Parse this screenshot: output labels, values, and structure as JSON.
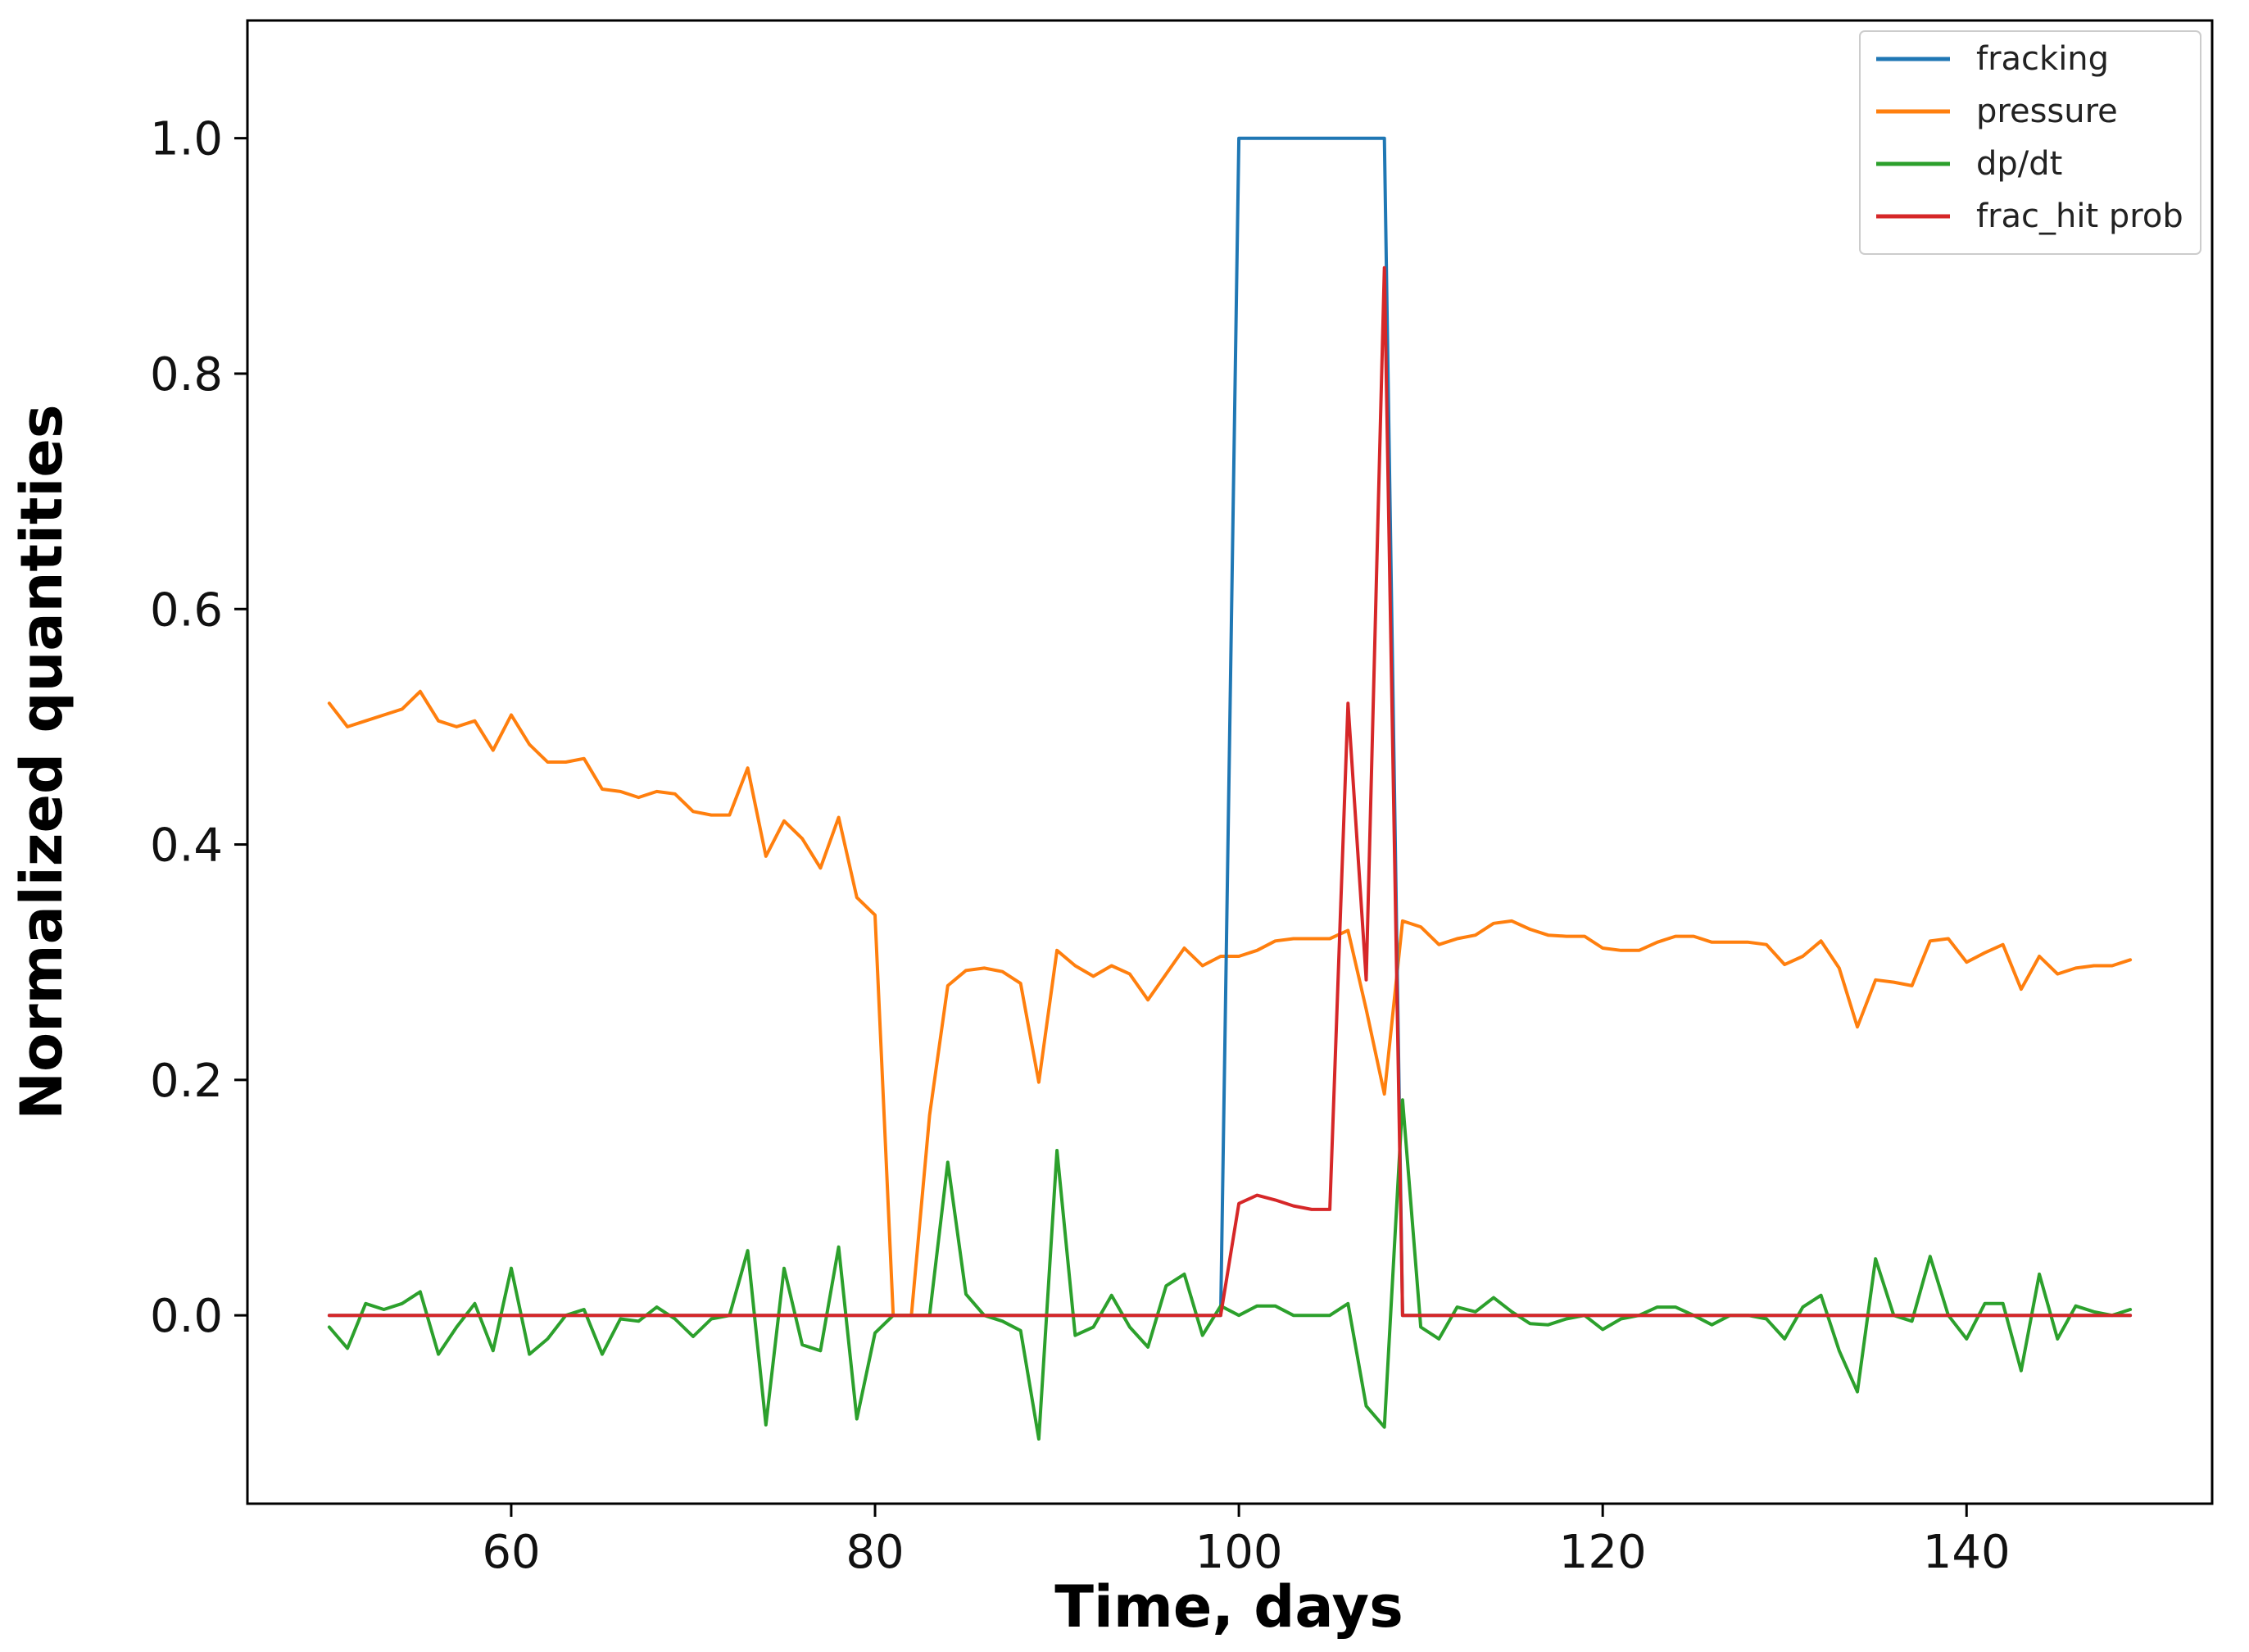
{
  "chart_data": {
    "type": "line",
    "title": "",
    "xlabel": "Time, days",
    "ylabel": "Normalized quantities",
    "xlim": [
      45.5,
      153.5
    ],
    "ylim": [
      -0.16,
      1.1
    ],
    "xticks": [
      60,
      80,
      100,
      120,
      140
    ],
    "xtick_labels": [
      "60",
      "80",
      "100",
      "120",
      "140"
    ],
    "yticks": [
      0.0,
      0.2,
      0.4,
      0.6,
      0.8,
      1.0
    ],
    "ytick_labels": [
      "0.0",
      "0.2",
      "0.4",
      "0.6",
      "0.8",
      "1.0"
    ],
    "grid": false,
    "legend_position": "top-right",
    "series": [
      {
        "name": "fracking",
        "color": "#1f77b4",
        "x": [
          50,
          99,
          100,
          108,
          109,
          149
        ],
        "y": [
          0,
          0,
          1,
          1,
          0,
          0
        ]
      },
      {
        "name": "pressure",
        "color": "#ff7f0e",
        "x": [
          50,
          51,
          52,
          53,
          54,
          55,
          56,
          57,
          58,
          59,
          60,
          61,
          62,
          63,
          64,
          65,
          66,
          67,
          68,
          69,
          70,
          71,
          72,
          73,
          74,
          75,
          76,
          77,
          78,
          79,
          80,
          81,
          82,
          83,
          84,
          85,
          86,
          87,
          88,
          89,
          90,
          91,
          92,
          93,
          94,
          95,
          96,
          97,
          98,
          99,
          100,
          101,
          102,
          103,
          104,
          105,
          106,
          107,
          108,
          109,
          110,
          111,
          112,
          113,
          114,
          115,
          116,
          117,
          118,
          119,
          120,
          121,
          122,
          123,
          124,
          125,
          126,
          127,
          128,
          129,
          130,
          131,
          132,
          133,
          134,
          135,
          136,
          137,
          138,
          139,
          140,
          141,
          142,
          143,
          144,
          145,
          146,
          147,
          148,
          149
        ],
        "y": [
          0.52,
          0.5,
          0.505,
          0.51,
          0.515,
          0.53,
          0.505,
          0.5,
          0.505,
          0.48,
          0.51,
          0.485,
          0.47,
          0.47,
          0.473,
          0.447,
          0.445,
          0.44,
          0.445,
          0.443,
          0.428,
          0.425,
          0.425,
          0.465,
          0.39,
          0.42,
          0.405,
          0.38,
          0.423,
          0.355,
          0.34,
          0.0,
          0.0,
          0.17,
          0.28,
          0.293,
          0.295,
          0.292,
          0.282,
          0.198,
          0.31,
          0.297,
          0.288,
          0.297,
          0.29,
          0.268,
          0.29,
          0.312,
          0.297,
          0.305,
          0.305,
          0.31,
          0.318,
          0.32,
          0.32,
          0.32,
          0.327,
          0.26,
          0.188,
          0.335,
          0.33,
          0.315,
          0.32,
          0.323,
          0.333,
          0.335,
          0.328,
          0.323,
          0.322,
          0.322,
          0.312,
          0.31,
          0.31,
          0.317,
          0.322,
          0.322,
          0.317,
          0.317,
          0.317,
          0.315,
          0.298,
          0.305,
          0.318,
          0.295,
          0.245,
          0.285,
          0.283,
          0.28,
          0.318,
          0.32,
          0.3,
          0.308,
          0.315,
          0.277,
          0.305,
          0.29,
          0.295,
          0.297,
          0.297,
          0.302
        ]
      },
      {
        "name": "dp/dt",
        "color": "#2ca02c",
        "x": [
          50,
          51,
          52,
          53,
          54,
          55,
          56,
          57,
          58,
          59,
          60,
          61,
          62,
          63,
          64,
          65,
          66,
          67,
          68,
          69,
          70,
          71,
          72,
          73,
          74,
          75,
          76,
          77,
          78,
          79,
          80,
          81,
          82,
          83,
          84,
          85,
          86,
          87,
          88,
          89,
          90,
          91,
          92,
          93,
          94,
          95,
          96,
          97,
          98,
          99,
          100,
          101,
          102,
          103,
          104,
          105,
          106,
          107,
          108,
          109,
          110,
          111,
          112,
          113,
          114,
          115,
          116,
          117,
          118,
          119,
          120,
          121,
          122,
          123,
          124,
          125,
          126,
          127,
          128,
          129,
          130,
          131,
          132,
          133,
          134,
          135,
          136,
          137,
          138,
          139,
          140,
          141,
          142,
          143,
          144,
          145,
          146,
          147,
          148,
          149
        ],
        "y": [
          -0.01,
          -0.028,
          0.01,
          0.005,
          0.01,
          0.02,
          -0.033,
          -0.01,
          0.01,
          -0.03,
          0.04,
          -0.033,
          -0.02,
          0.0,
          0.005,
          -0.033,
          -0.003,
          -0.005,
          0.007,
          -0.003,
          -0.018,
          -0.003,
          0.0,
          0.055,
          -0.093,
          0.04,
          -0.025,
          -0.03,
          0.058,
          -0.088,
          -0.015,
          0.0,
          0.0,
          0.0,
          0.13,
          0.018,
          0.0,
          -0.005,
          -0.013,
          -0.105,
          0.14,
          -0.017,
          -0.01,
          0.017,
          -0.01,
          -0.027,
          0.025,
          0.035,
          -0.017,
          0.008,
          0.0,
          0.008,
          0.008,
          0.0,
          0.0,
          0.0,
          0.01,
          -0.077,
          -0.095,
          0.183,
          -0.01,
          -0.02,
          0.007,
          0.003,
          0.015,
          0.003,
          -0.007,
          -0.008,
          -0.003,
          0.0,
          -0.012,
          -0.003,
          0.0,
          0.007,
          0.007,
          0.0,
          -0.008,
          0.0,
          0.0,
          -0.003,
          -0.02,
          0.007,
          0.017,
          -0.03,
          -0.065,
          0.048,
          0.0,
          -0.005,
          0.05,
          0.0,
          -0.02,
          0.01,
          0.01,
          -0.047,
          0.035,
          -0.02,
          0.008,
          0.003,
          0.0,
          0.005
        ]
      },
      {
        "name": "frac_hit prob",
        "color": "#d62728",
        "x": [
          50,
          99,
          100,
          101,
          102,
          103,
          104,
          105,
          106,
          107,
          108,
          109,
          110,
          149
        ],
        "y": [
          0,
          0,
          0.095,
          0.102,
          0.098,
          0.093,
          0.09,
          0.09,
          0.52,
          0.285,
          0.89,
          0.0,
          0,
          0
        ]
      }
    ]
  }
}
